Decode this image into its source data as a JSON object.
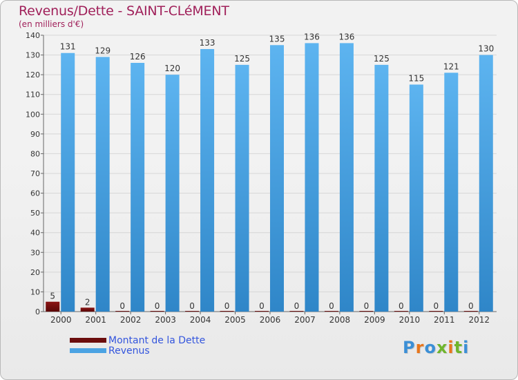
{
  "title": "Revenus/Dette - SAINT-CLéMENT",
  "subtitle": "(en milliers d'€)",
  "colors": {
    "dette": "#6b0d0d",
    "revenus": "#4ba3e3",
    "title": "#a0205a",
    "legend_text": "#3355dd",
    "logo": [
      "#3b8fd6",
      "#e8761c",
      "#3b8fd6",
      "#6fb52c",
      "#e8761c",
      "#6fb52c",
      "#3b8fd6"
    ]
  },
  "chart_data": {
    "type": "bar",
    "title": "Revenus/Dette - SAINT-CLéMENT",
    "ylabel": "(en milliers d'€)",
    "xlabel": "",
    "categories": [
      "2000",
      "2001",
      "2002",
      "2003",
      "2004",
      "2005",
      "2006",
      "2007",
      "2008",
      "2009",
      "2010",
      "2011",
      "2012"
    ],
    "series": [
      {
        "name": "Montant de la Dette",
        "values": [
          5,
          2,
          0,
          0,
          0,
          0,
          0,
          0,
          0,
          0,
          0,
          0,
          0
        ]
      },
      {
        "name": "Revenus",
        "values": [
          131,
          129,
          126,
          120,
          133,
          125,
          135,
          136,
          136,
          125,
          115,
          121,
          130
        ]
      }
    ],
    "ylim": [
      0,
      140
    ],
    "yticks": [
      0,
      10,
      20,
      30,
      40,
      50,
      60,
      70,
      80,
      90,
      100,
      110,
      120,
      130,
      140
    ],
    "grid": true,
    "legend": "bottom-left"
  },
  "legend": {
    "items": [
      {
        "label": "Montant de la Dette"
      },
      {
        "label": "Revenus"
      }
    ]
  },
  "logo": {
    "text": "Proxiti",
    "letters": [
      "P",
      "r",
      "o",
      "x",
      "i",
      "t",
      "i"
    ]
  }
}
